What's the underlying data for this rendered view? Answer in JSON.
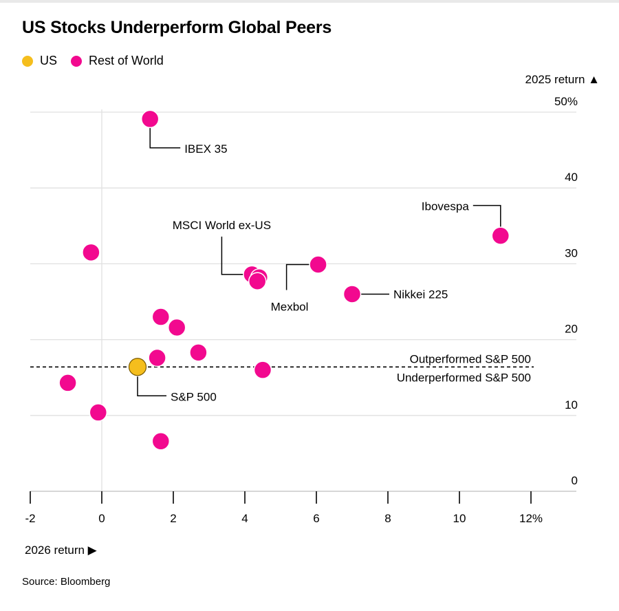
{
  "chart_data": {
    "type": "scatter",
    "title": "US Stocks Underperform Global Peers",
    "xlabel": "2026 return ▶",
    "ylabel": "2025 return ▲",
    "xlim": [
      -2,
      12
    ],
    "ylim": [
      0,
      50
    ],
    "x_ticks": [
      "-2",
      "0",
      "2",
      "4",
      "6",
      "8",
      "10",
      "12%"
    ],
    "y_ticks": [
      "0",
      "10",
      "20",
      "30",
      "40",
      "50%"
    ],
    "grid": "horizontal",
    "legend_placement": "top-left",
    "series": [
      {
        "name": "US",
        "color": "#f5be1d",
        "points": [
          {
            "x": 1.0,
            "y": 16.4,
            "label": "S&P 500"
          }
        ]
      },
      {
        "name": "Rest of World",
        "color": "#f2098f",
        "points": [
          {
            "x": 1.35,
            "y": 49.1,
            "label": "IBEX 35"
          },
          {
            "x": 11.15,
            "y": 33.7,
            "label": "Ibovespa"
          },
          {
            "x": -0.3,
            "y": 31.5,
            "label": ""
          },
          {
            "x": 6.05,
            "y": 29.9,
            "label": "Mexbol"
          },
          {
            "x": 4.2,
            "y": 28.6,
            "label": "MSCI World ex-US"
          },
          {
            "x": 4.4,
            "y": 28.2,
            "label": ""
          },
          {
            "x": 4.35,
            "y": 27.7,
            "label": ""
          },
          {
            "x": 7.0,
            "y": 26.0,
            "label": "Nikkei 225"
          },
          {
            "x": 1.65,
            "y": 23.0,
            "label": ""
          },
          {
            "x": 2.1,
            "y": 21.6,
            "label": ""
          },
          {
            "x": 2.7,
            "y": 18.3,
            "label": ""
          },
          {
            "x": 1.55,
            "y": 17.6,
            "label": ""
          },
          {
            "x": 4.5,
            "y": 16.0,
            "label": ""
          },
          {
            "x": -0.95,
            "y": 14.3,
            "label": ""
          },
          {
            "x": -0.1,
            "y": 10.4,
            "label": ""
          },
          {
            "x": 1.65,
            "y": 6.6,
            "label": ""
          }
        ]
      }
    ],
    "reference_line": {
      "y": 16.4,
      "style": "dashed",
      "label_above": "Outperformed S&P 500",
      "label_below": "Underperformed S&P 500"
    }
  },
  "source": "Source: Bloomberg"
}
